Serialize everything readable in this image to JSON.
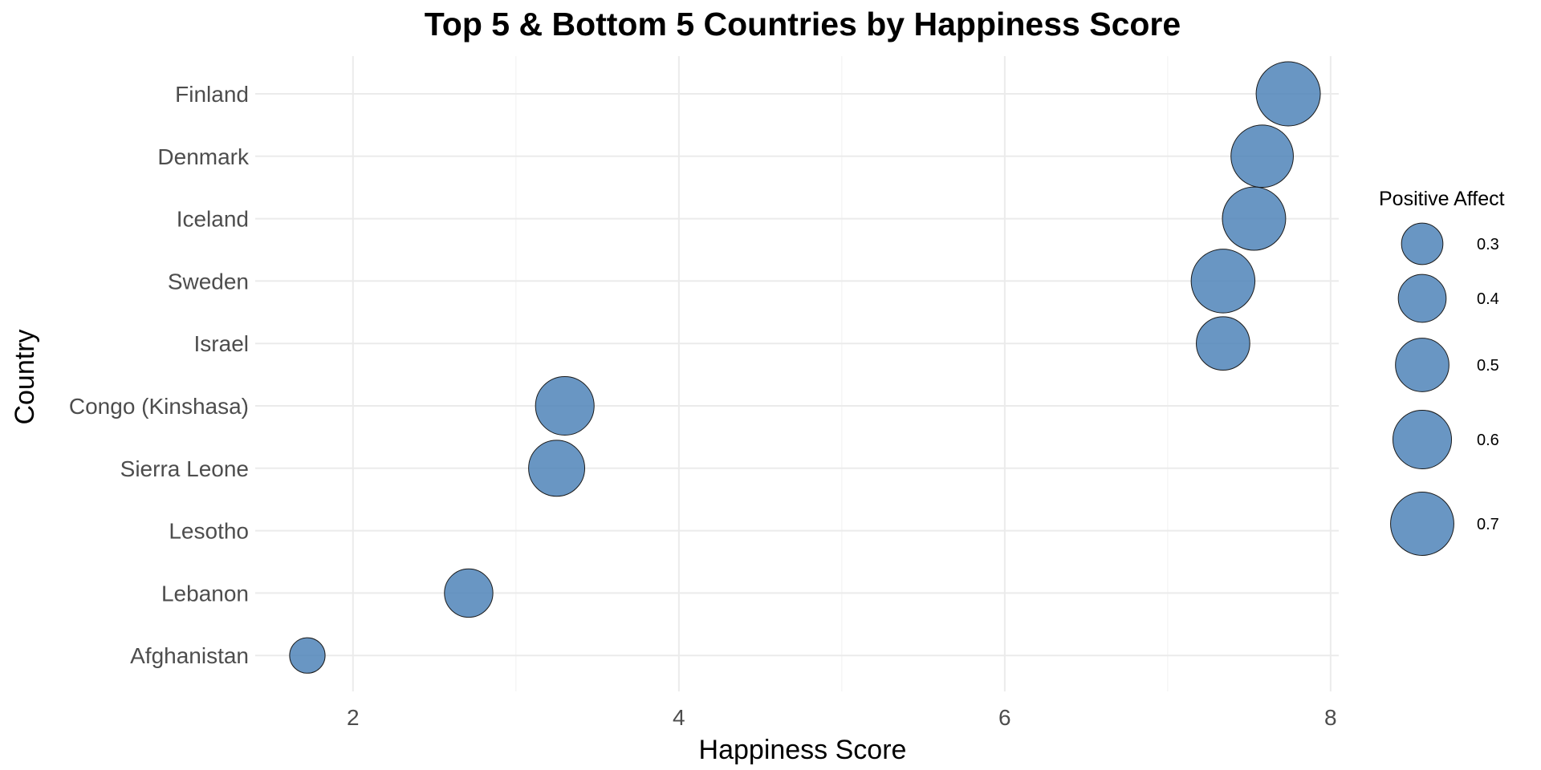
{
  "chart_data": {
    "type": "scatter",
    "title": "Top 5 & Bottom 5 Countries by Happiness Score",
    "xlabel": "Happiness Score",
    "ylabel": "Country",
    "xlim": [
      1.4,
      8.05
    ],
    "xticks": [
      2,
      4,
      6,
      8
    ],
    "grid": true,
    "bubble_color": "#4f84b9",
    "bubble_opacity": 0.85,
    "categories": [
      "Finland",
      "Denmark",
      "Iceland",
      "Sweden",
      "Israel",
      "Congo (Kinshasa)",
      "Sierra Leone",
      "Lesotho",
      "Lebanon",
      "Afghanistan"
    ],
    "points": [
      {
        "country": "Finland",
        "x": 7.74,
        "size": 0.72
      },
      {
        "country": "Denmark",
        "x": 7.58,
        "size": 0.68
      },
      {
        "country": "Iceland",
        "x": 7.53,
        "size": 0.7
      },
      {
        "country": "Sweden",
        "x": 7.34,
        "size": 0.71
      },
      {
        "country": "Israel",
        "x": 7.34,
        "size": 0.5
      },
      {
        "country": "Congo (Kinshasa)",
        "x": 3.3,
        "size": 0.6
      },
      {
        "country": "Sierra Leone",
        "x": 3.25,
        "size": 0.55
      },
      {
        "country": "Lebanon",
        "x": 2.71,
        "size": 0.41
      },
      {
        "country": "Afghanistan",
        "x": 1.72,
        "size": 0.22
      }
    ],
    "legend": {
      "title": "Positive Affect",
      "position": "right",
      "values": [
        0.3,
        0.4,
        0.5,
        0.6,
        0.7
      ],
      "labels": [
        "0.3",
        "0.4",
        "0.5",
        "0.6",
        "0.7"
      ]
    }
  }
}
